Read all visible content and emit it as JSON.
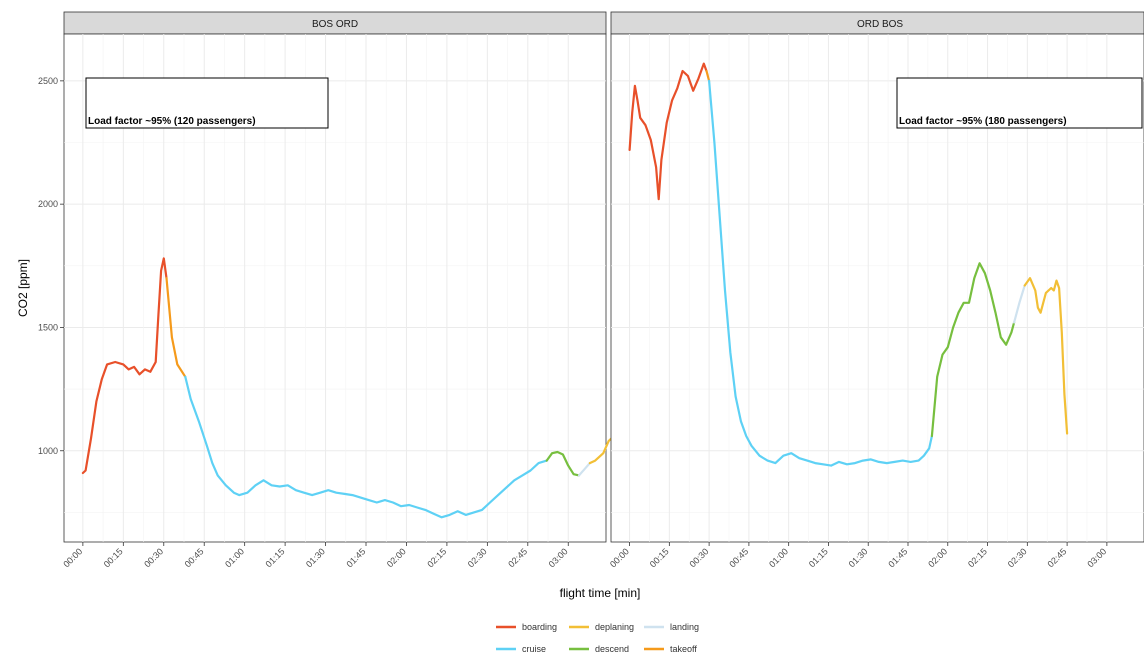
{
  "colors": {
    "boarding": "#e8502a",
    "deplaning": "#f2bf36",
    "landing": "#cfe2ef",
    "cruise": "#5ed1f5",
    "descend": "#77bf3f",
    "takeoff": "#f59a1b",
    "panel_bg": "#ffffff",
    "strip_bg": "#d9d9d9",
    "grid": "#ebebeb"
  },
  "chart_data": {
    "type": "line",
    "xlabel": "flight time [min]",
    "ylabel": "CO2 [ppm]",
    "ylim": [
      630,
      2690
    ],
    "yticks": [
      1000,
      1500,
      2000,
      2500
    ],
    "xticks": [
      "00:00",
      "00:15",
      "00:30",
      "00:45",
      "01:00",
      "01:15",
      "01:30",
      "01:45",
      "02:00",
      "02:15",
      "02:30",
      "02:45",
      "03:00"
    ],
    "grid": true,
    "legend_position": "bottom",
    "legend": [
      {
        "key": "boarding",
        "label": "boarding"
      },
      {
        "key": "deplaning",
        "label": "deplaning"
      },
      {
        "key": "landing",
        "label": "landing"
      },
      {
        "key": "cruise",
        "label": "cruise"
      },
      {
        "key": "descend",
        "label": "descend"
      },
      {
        "key": "takeoff",
        "label": "takeoff"
      }
    ],
    "panels": [
      {
        "title": "BOS ORD",
        "annotation": "Load factor ~95% (120 passengers)",
        "xlim": [
          -7,
          194
        ],
        "segments": [
          {
            "phase": "boarding",
            "points": [
              [
                0,
                910
              ],
              [
                1,
                920
              ],
              [
                3,
                1050
              ],
              [
                5,
                1200
              ],
              [
                7,
                1290
              ],
              [
                9,
                1350
              ],
              [
                12,
                1360
              ],
              [
                15,
                1350
              ],
              [
                17,
                1330
              ],
              [
                19,
                1340
              ],
              [
                21,
                1310
              ],
              [
                23,
                1330
              ],
              [
                25,
                1320
              ],
              [
                27,
                1360
              ],
              [
                28,
                1550
              ],
              [
                29,
                1730
              ],
              [
                30,
                1780
              ],
              [
                31,
                1700
              ]
            ]
          },
          {
            "phase": "takeoff",
            "points": [
              [
                31,
                1700
              ],
              [
                33,
                1460
              ],
              [
                35,
                1350
              ],
              [
                38,
                1300
              ]
            ]
          },
          {
            "phase": "cruise",
            "points": [
              [
                38,
                1300
              ],
              [
                40,
                1210
              ],
              [
                43,
                1120
              ],
              [
                46,
                1020
              ],
              [
                48,
                950
              ],
              [
                50,
                900
              ],
              [
                53,
                860
              ],
              [
                56,
                830
              ],
              [
                58,
                820
              ],
              [
                61,
                830
              ],
              [
                64,
                860
              ],
              [
                67,
                880
              ],
              [
                70,
                860
              ],
              [
                73,
                855
              ],
              [
                76,
                860
              ],
              [
                79,
                840
              ],
              [
                82,
                830
              ],
              [
                85,
                820
              ],
              [
                88,
                830
              ],
              [
                91,
                840
              ],
              [
                94,
                830
              ],
              [
                97,
                825
              ],
              [
                100,
                820
              ],
              [
                103,
                810
              ],
              [
                106,
                800
              ],
              [
                109,
                790
              ],
              [
                112,
                800
              ],
              [
                115,
                790
              ],
              [
                118,
                775
              ],
              [
                121,
                780
              ],
              [
                124,
                770
              ],
              [
                127,
                760
              ],
              [
                130,
                745
              ],
              [
                133,
                730
              ],
              [
                136,
                740
              ],
              [
                139,
                755
              ],
              [
                142,
                740
              ],
              [
                145,
                750
              ],
              [
                148,
                760
              ],
              [
                151,
                790
              ],
              [
                154,
                820
              ],
              [
                157,
                850
              ],
              [
                160,
                880
              ],
              [
                163,
                900
              ],
              [
                166,
                920
              ],
              [
                169,
                950
              ],
              [
                172,
                960
              ]
            ]
          },
          {
            "phase": "descend",
            "points": [
              [
                172,
                960
              ],
              [
                174,
                990
              ],
              [
                176,
                995
              ],
              [
                178,
                985
              ],
              [
                180,
                940
              ],
              [
                182,
                905
              ],
              [
                184,
                900
              ]
            ]
          },
          {
            "phase": "landing",
            "points": [
              [
                184,
                900
              ],
              [
                186,
                925
              ],
              [
                188,
                950
              ]
            ]
          },
          {
            "phase": "deplaning",
            "points": [
              [
                188,
                950
              ],
              [
                190,
                960
              ],
              [
                193,
                990
              ],
              [
                195,
                1040
              ],
              [
                197,
                1060
              ],
              [
                199,
                1055
              ],
              [
                201,
                1075
              ]
            ]
          }
        ]
      },
      {
        "title": "ORD BOS",
        "annotation": "Load factor ~95% (180 passengers)",
        "xlim": [
          -7,
          194
        ],
        "segments": [
          {
            "phase": "boarding",
            "points": [
              [
                0,
                2220
              ],
              [
                1,
                2370
              ],
              [
                2,
                2480
              ],
              [
                3,
                2420
              ],
              [
                4,
                2350
              ],
              [
                6,
                2320
              ],
              [
                8,
                2260
              ],
              [
                10,
                2150
              ],
              [
                11,
                2020
              ],
              [
                12,
                2180
              ],
              [
                14,
                2330
              ],
              [
                16,
                2420
              ],
              [
                18,
                2470
              ],
              [
                20,
                2540
              ],
              [
                22,
                2520
              ],
              [
                24,
                2460
              ],
              [
                26,
                2510
              ],
              [
                28,
                2570
              ],
              [
                29,
                2540
              ]
            ]
          },
          {
            "phase": "takeoff",
            "points": [
              [
                29,
                2540
              ],
              [
                30,
                2500
              ]
            ]
          },
          {
            "phase": "cruise",
            "points": [
              [
                30,
                2500
              ],
              [
                32,
                2250
              ],
              [
                34,
                1950
              ],
              [
                36,
                1650
              ],
              [
                38,
                1400
              ],
              [
                40,
                1220
              ],
              [
                42,
                1120
              ],
              [
                44,
                1060
              ],
              [
                46,
                1020
              ],
              [
                49,
                980
              ],
              [
                52,
                960
              ],
              [
                55,
                950
              ],
              [
                58,
                980
              ],
              [
                61,
                990
              ],
              [
                64,
                970
              ],
              [
                67,
                960
              ],
              [
                70,
                950
              ],
              [
                73,
                945
              ],
              [
                76,
                940
              ],
              [
                79,
                955
              ],
              [
                82,
                945
              ],
              [
                85,
                950
              ],
              [
                88,
                960
              ],
              [
                91,
                965
              ],
              [
                94,
                955
              ],
              [
                97,
                950
              ],
              [
                100,
                955
              ],
              [
                103,
                960
              ],
              [
                106,
                955
              ],
              [
                109,
                960
              ],
              [
                111,
                980
              ],
              [
                113,
                1010
              ],
              [
                114,
                1060
              ]
            ]
          },
          {
            "phase": "descend",
            "points": [
              [
                114,
                1060
              ],
              [
                116,
                1300
              ],
              [
                118,
                1390
              ],
              [
                120,
                1420
              ],
              [
                122,
                1500
              ],
              [
                124,
                1560
              ],
              [
                126,
                1600
              ],
              [
                128,
                1600
              ],
              [
                130,
                1700
              ],
              [
                132,
                1760
              ],
              [
                134,
                1720
              ],
              [
                136,
                1650
              ],
              [
                138,
                1560
              ],
              [
                140,
                1460
              ],
              [
                142,
                1430
              ],
              [
                144,
                1480
              ],
              [
                145,
                1520
              ]
            ]
          },
          {
            "phase": "landing",
            "points": [
              [
                145,
                1520
              ],
              [
                147,
                1600
              ],
              [
                149,
                1670
              ]
            ]
          },
          {
            "phase": "deplaning",
            "points": [
              [
                149,
                1670
              ],
              [
                151,
                1700
              ],
              [
                153,
                1650
              ],
              [
                154,
                1580
              ],
              [
                155,
                1560
              ],
              [
                157,
                1640
              ],
              [
                159,
                1660
              ],
              [
                160,
                1650
              ],
              [
                161,
                1690
              ],
              [
                162,
                1660
              ],
              [
                163,
                1480
              ],
              [
                164,
                1230
              ],
              [
                165,
                1070
              ]
            ]
          }
        ]
      }
    ]
  }
}
